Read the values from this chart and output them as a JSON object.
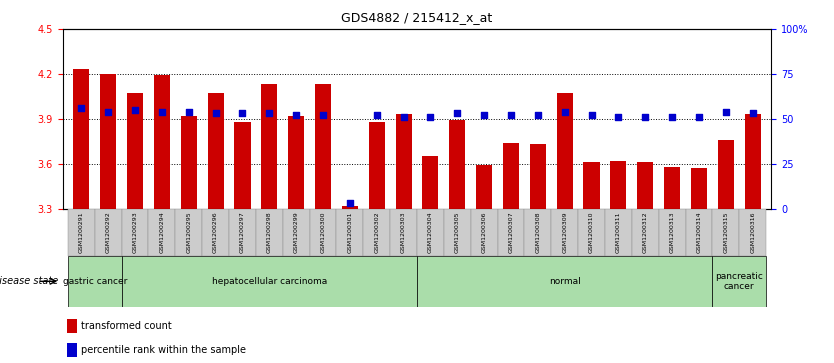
{
  "title": "GDS4882 / 215412_x_at",
  "samples": [
    "GSM1200291",
    "GSM1200292",
    "GSM1200293",
    "GSM1200294",
    "GSM1200295",
    "GSM1200296",
    "GSM1200297",
    "GSM1200298",
    "GSM1200299",
    "GSM1200300",
    "GSM1200301",
    "GSM1200302",
    "GSM1200303",
    "GSM1200304",
    "GSM1200305",
    "GSM1200306",
    "GSM1200307",
    "GSM1200308",
    "GSM1200309",
    "GSM1200310",
    "GSM1200311",
    "GSM1200312",
    "GSM1200313",
    "GSM1200314",
    "GSM1200315",
    "GSM1200316"
  ],
  "bar_values": [
    4.23,
    4.2,
    4.07,
    4.19,
    3.92,
    4.07,
    3.88,
    4.13,
    3.92,
    4.13,
    3.32,
    3.88,
    3.93,
    3.65,
    3.89,
    3.59,
    3.74,
    3.73,
    4.07,
    3.61,
    3.62,
    3.61,
    3.58,
    3.57,
    3.76,
    3.93
  ],
  "percentile_values": [
    56,
    54,
    55,
    54,
    54,
    53,
    53,
    53,
    52,
    52,
    3,
    52,
    51,
    51,
    53,
    52,
    52,
    52,
    54,
    52,
    51,
    51,
    51,
    51,
    54,
    53
  ],
  "disease_groups": [
    {
      "label": "gastric cancer",
      "start": 0,
      "end": 2
    },
    {
      "label": "hepatocellular carcinoma",
      "start": 2,
      "end": 13
    },
    {
      "label": "normal",
      "start": 13,
      "end": 24
    },
    {
      "label": "pancreatic\ncancer",
      "start": 24,
      "end": 26
    }
  ],
  "bar_color": "#CC0000",
  "percentile_color": "#0000CC",
  "ylim_left": [
    3.3,
    4.5
  ],
  "ylim_right": [
    0,
    100
  ],
  "yticks_left": [
    3.3,
    3.6,
    3.9,
    4.2,
    4.5
  ],
  "yticks_right": [
    0,
    25,
    50,
    75,
    100
  ],
  "ytick_labels_right": [
    "0",
    "25",
    "50",
    "75",
    "100%"
  ],
  "hlines": [
    3.6,
    3.9,
    4.2
  ],
  "legend_items": [
    {
      "label": "transformed count",
      "color": "#CC0000"
    },
    {
      "label": "percentile rank within the sample",
      "color": "#0000CC"
    }
  ],
  "disease_state_label": "disease state",
  "group_bg_color": "#AADDAA",
  "bar_bottom": 3.3
}
